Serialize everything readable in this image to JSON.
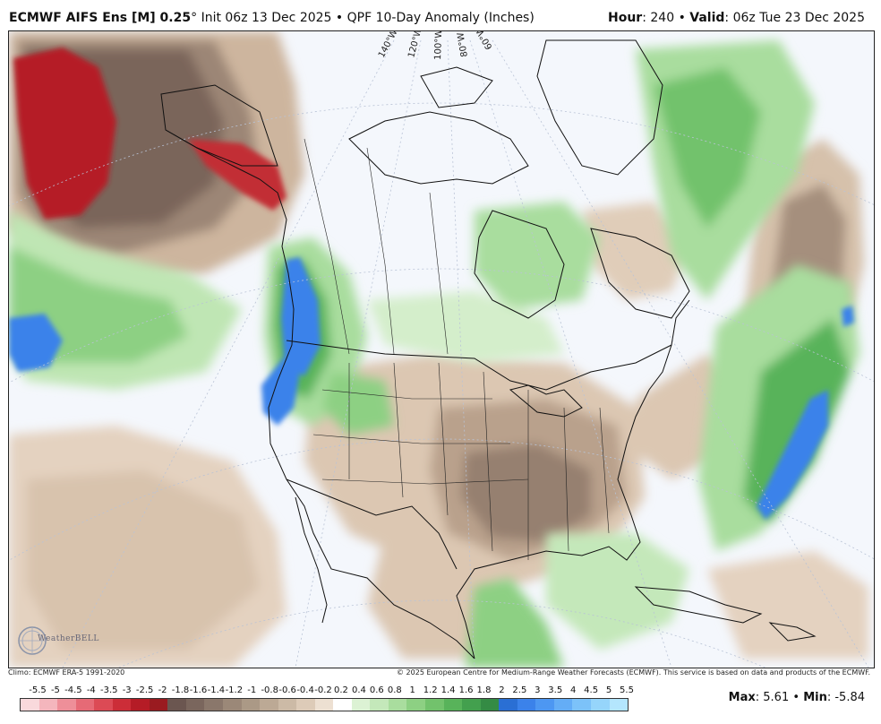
{
  "header": {
    "model": "ECMWF AIFS Ens [M] 0.25",
    "degree": "°",
    "init": "Init 06z 13 Dec 2025",
    "separator": "•",
    "product": "QPF 10-Day Anomaly (Inches)",
    "hour_label": "Hour",
    "hour_value": ": 240",
    "valid_label": "Valid",
    "valid_value": ": 06z Tue 23 Dec 2025"
  },
  "map": {
    "longitude_labels": [
      "140°W",
      "120°W",
      "100°W",
      "80°W",
      "60°W"
    ],
    "logo_text": "WeatherBELL"
  },
  "footer": {
    "climo": "Climo: ECMWF ERA-5 1991-2020",
    "copyright": "© 2025 European Centre for Medium-Range Weather Forecasts (ECMWF). This service is based on data and products of the ECMWF.",
    "max_label": "Max",
    "max_value": ": 5.61",
    "min_label": "Min",
    "min_value": ": -5.84",
    "bullet": "•"
  },
  "colorbar": {
    "labels": [
      "-5.5",
      "-5",
      "-4.5",
      "-4",
      "-3.5",
      "-3",
      "-2.5",
      "-2",
      "-1.8",
      "-1.6",
      "-1.4",
      "-1.2",
      "-1",
      "-0.8",
      "-0.6",
      "-0.4",
      "-0.2",
      "0.2",
      "0.4",
      "0.6",
      "0.8",
      "1",
      "1.2",
      "1.4",
      "1.6",
      "1.8",
      "2",
      "2.5",
      "3",
      "3.5",
      "4",
      "4.5",
      "5",
      "5.5"
    ],
    "colors": [
      "#f9d9dc",
      "#f4b6bd",
      "#ee8f99",
      "#e66a76",
      "#dc4a55",
      "#cc2d38",
      "#b51c26",
      "#9a1b20",
      "#6b5650",
      "#7a665d",
      "#8a776b",
      "#9b8878",
      "#ab9986",
      "#bca995",
      "#ccbaa6",
      "#ddcbb8",
      "#ede0d2",
      "#ffffff",
      "#dcf2d4",
      "#c4e8ba",
      "#a9dd9e",
      "#8dd083",
      "#72c26c",
      "#58b35a",
      "#43a04e",
      "#348b44",
      "#2a6fd4",
      "#3b82ea",
      "#4d97f2",
      "#64adf6",
      "#7cc2f9",
      "#96d5fb",
      "#b4e6fd"
    ]
  },
  "colors": {
    "dry_dark": "#7a655a",
    "dry_light": "#d9c4ae",
    "wet_light": "#a9dd9e",
    "wet_dark": "#43a04e",
    "very_wet": "#3b82ea",
    "very_dry": "#b51c26",
    "ocean_bg": "#f4f7fc"
  }
}
